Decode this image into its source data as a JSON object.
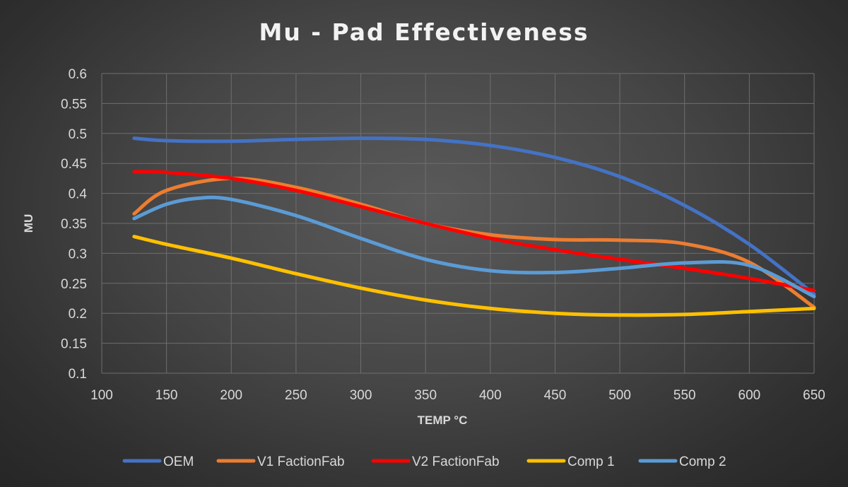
{
  "chart_data": {
    "type": "line",
    "title": "Mu - Pad Effectiveness",
    "xlabel": "TEMP °C",
    "ylabel": "MU",
    "xlim": [
      100,
      650
    ],
    "ylim": [
      0.1,
      0.6
    ],
    "xticks": [
      100,
      150,
      200,
      250,
      300,
      350,
      400,
      450,
      500,
      550,
      600,
      650
    ],
    "yticks": [
      0.1,
      0.15,
      0.2,
      0.25,
      0.3,
      0.35,
      0.4,
      0.45,
      0.5,
      0.55,
      0.6
    ],
    "xtick_labels": [
      "100",
      "150",
      "200",
      "250",
      "300",
      "350",
      "400",
      "450",
      "500",
      "550",
      "600",
      "650"
    ],
    "ytick_labels": [
      "0.1",
      "0.15",
      "0.2",
      "0.25",
      "0.3",
      "0.35",
      "0.4",
      "0.45",
      "0.5",
      "0.55",
      "0.6"
    ],
    "grid": true,
    "legend_position": "bottom",
    "smooth": true,
    "series": [
      {
        "name": "OEM",
        "color": "#4472C4",
        "x": [
          125,
          150,
          200,
          250,
          300,
          350,
          400,
          450,
          500,
          550,
          600,
          650
        ],
        "y": [
          0.492,
          0.488,
          0.487,
          0.49,
          0.492,
          0.49,
          0.48,
          0.46,
          0.428,
          0.38,
          0.315,
          0.232
        ]
      },
      {
        "name": "V1 FactionFab",
        "color": "#ED7D31",
        "x": [
          125,
          150,
          200,
          250,
          300,
          350,
          400,
          450,
          500,
          550,
          600,
          650
        ],
        "y": [
          0.366,
          0.405,
          0.425,
          0.41,
          0.382,
          0.35,
          0.331,
          0.323,
          0.322,
          0.316,
          0.285,
          0.21
        ]
      },
      {
        "name": "V2 FactionFab",
        "color": "#FF0000",
        "x": [
          125,
          150,
          200,
          250,
          300,
          350,
          400,
          450,
          500,
          550,
          600,
          650
        ],
        "y": [
          0.436,
          0.435,
          0.425,
          0.405,
          0.378,
          0.35,
          0.325,
          0.306,
          0.29,
          0.275,
          0.258,
          0.238
        ]
      },
      {
        "name": "Comp 1",
        "color": "#FFC000",
        "x": [
          125,
          150,
          200,
          250,
          300,
          350,
          400,
          450,
          500,
          550,
          600,
          650
        ],
        "y": [
          0.328,
          0.315,
          0.292,
          0.266,
          0.242,
          0.222,
          0.208,
          0.2,
          0.197,
          0.198,
          0.203,
          0.208
        ]
      },
      {
        "name": "Comp 2",
        "color": "#5B9BD5",
        "x": [
          125,
          150,
          175,
          200,
          250,
          300,
          350,
          400,
          450,
          500,
          550,
          600,
          650
        ],
        "y": [
          0.358,
          0.382,
          0.392,
          0.39,
          0.363,
          0.325,
          0.29,
          0.271,
          0.268,
          0.275,
          0.284,
          0.28,
          0.228
        ]
      }
    ]
  }
}
